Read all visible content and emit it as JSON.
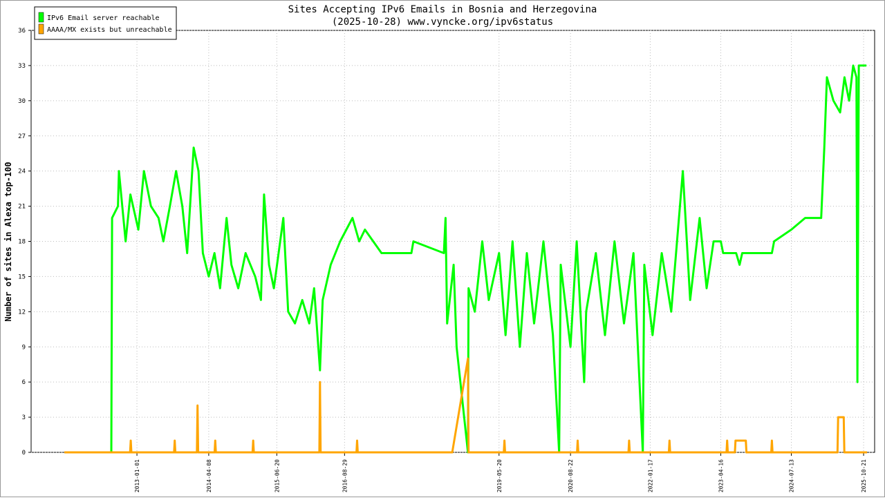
{
  "chart_data": {
    "type": "line",
    "title": "Sites Accepting IPv6 Emails in Bosnia and Herzegovina",
    "subtitle": "(2025-10-28) www.vyncke.org/ipv6status",
    "y_label": "Number of sites in Alexa top-100",
    "legend": "top-left",
    "grid": true,
    "xlim": [
      "2011-02-20",
      "2025-12-31"
    ],
    "xticks": [
      "2013-01-01",
      "2014-04-08",
      "2015-06-20",
      "2016-08-29",
      "2019-05-20",
      "2020-08-22",
      "2022-01-17",
      "2023-04-16",
      "2024-07-13",
      "2025-10-21"
    ],
    "ylim": [
      0,
      36
    ],
    "yticks": [
      0,
      3,
      6,
      9,
      12,
      15,
      18,
      21,
      24,
      27,
      30,
      33,
      36
    ],
    "series": [
      {
        "name": "IPv6 Email server reachable",
        "color": "#00ff00",
        "x": [
          "2012-07-20",
          "2012-07-25",
          "2012-09-01",
          "2012-09-07",
          "2012-10-20",
          "2012-11-20",
          "2013-01-10",
          "2013-02-15",
          "2013-04-01",
          "2013-05-20",
          "2013-06-20",
          "2013-08-01",
          "2013-09-10",
          "2013-10-20",
          "2013-11-20",
          "2014-01-01",
          "2014-02-01",
          "2014-03-01",
          "2014-04-08",
          "2014-05-15",
          "2014-06-20",
          "2014-08-01",
          "2014-09-01",
          "2014-10-15",
          "2014-12-01",
          "2015-02-01",
          "2015-03-10",
          "2015-03-30",
          "2015-05-01",
          "2015-06-01",
          "2015-08-01",
          "2015-09-01",
          "2015-10-15",
          "2015-12-01",
          "2016-01-15",
          "2016-02-15",
          "2016-03-24",
          "2016-04-10",
          "2016-06-01",
          "2016-08-01",
          "2016-10-19",
          "2016-12-01",
          "2017-01-07",
          "2017-04-24",
          "2017-11-02",
          "2017-11-15",
          "2018-05-30",
          "2018-06-10",
          "2018-06-20",
          "2018-08-01",
          "2018-08-20",
          "2018-11-01",
          "2018-11-05",
          "2018-12-15",
          "2019-02-01",
          "2019-03-15",
          "2019-05-20",
          "2019-07-01",
          "2019-08-15",
          "2019-10-01",
          "2019-11-15",
          "2020-01-01",
          "2020-03-01",
          "2020-05-01",
          "2020-06-10",
          "2020-06-20",
          "2020-08-22",
          "2020-10-01",
          "2020-11-18",
          "2020-12-01",
          "2021-02-01",
          "2021-04-01",
          "2021-06-01",
          "2021-08-01",
          "2021-10-01",
          "2021-11-30",
          "2021-12-10",
          "2022-02-01",
          "2022-04-01",
          "2022-06-01",
          "2022-08-15",
          "2022-10-01",
          "2022-12-01",
          "2023-01-15",
          "2023-03-01",
          "2023-04-16",
          "2023-05-01",
          "2023-07-24",
          "2023-08-15",
          "2023-09-01",
          "2024-03-10",
          "2024-03-24",
          "2024-07-13",
          "2024-10-10",
          "2025-01-21",
          "2025-02-10",
          "2025-02-27",
          "2025-04-10",
          "2025-05-23",
          "2025-06-20",
          "2025-07-20",
          "2025-08-15",
          "2025-09-05",
          "2025-09-11",
          "2025-09-20",
          "2025-11-08"
        ],
        "values": [
          0,
          20,
          21,
          24,
          18,
          22,
          19,
          24,
          21,
          20,
          18,
          21,
          24,
          21,
          17,
          26,
          24,
          17,
          15,
          17,
          14,
          20,
          16,
          14,
          17,
          15,
          13,
          22,
          16,
          14,
          20,
          12,
          11,
          13,
          11,
          14,
          7,
          13,
          16,
          18,
          20,
          18,
          19,
          17,
          17,
          18,
          17,
          20,
          11,
          16,
          9,
          0,
          14,
          12,
          18,
          13,
          17,
          10,
          18,
          9,
          17,
          11,
          18,
          10,
          0,
          16,
          9,
          18,
          6,
          12,
          17,
          10,
          18,
          11,
          17,
          0,
          16,
          10,
          17,
          12,
          24,
          13,
          20,
          14,
          18,
          18,
          17,
          17,
          16,
          17,
          17,
          18,
          19,
          20,
          20,
          26,
          32,
          30,
          29,
          32,
          30,
          33,
          32,
          6,
          33,
          33
        ]
      },
      {
        "name": "AAAA/MX exists but unreachable",
        "color": "#ffa500",
        "x": [
          "2011-09-22",
          "2012-11-18",
          "2012-11-22",
          "2012-11-26",
          "2013-08-28",
          "2013-09-01",
          "2013-09-05",
          "2014-01-22",
          "2014-01-26",
          "2014-01-30",
          "2014-05-16",
          "2014-05-20",
          "2014-05-24",
          "2015-01-15",
          "2015-01-19",
          "2015-01-23",
          "2016-03-20",
          "2016-03-24",
          "2016-03-28",
          "2016-11-14",
          "2016-11-18",
          "2016-11-22",
          "2018-07-23",
          "2018-11-01",
          "2018-11-05",
          "2019-06-20",
          "2019-06-24",
          "2019-06-28",
          "2020-10-03",
          "2020-10-07",
          "2020-10-11",
          "2021-08-30",
          "2021-09-03",
          "2021-09-07",
          "2022-05-17",
          "2022-05-21",
          "2022-05-25",
          "2023-05-23",
          "2023-05-27",
          "2023-05-31",
          "2023-07-16",
          "2023-07-20",
          "2023-09-24",
          "2023-09-28",
          "2024-03-06",
          "2024-03-10",
          "2024-03-14",
          "2025-05-06",
          "2025-05-10",
          "2025-06-15",
          "2025-06-19",
          "2025-11-12"
        ],
        "values": [
          0,
          0,
          1,
          0,
          0,
          1,
          0,
          0,
          4,
          0,
          0,
          1,
          0,
          0,
          1,
          0,
          0,
          6,
          0,
          0,
          1,
          0,
          0,
          8,
          0,
          0,
          1,
          0,
          0,
          1,
          0,
          0,
          1,
          0,
          0,
          1,
          0,
          0,
          1,
          0,
          0,
          1,
          1,
          0,
          0,
          1,
          0,
          0,
          3,
          3,
          0,
          0
        ]
      }
    ]
  }
}
